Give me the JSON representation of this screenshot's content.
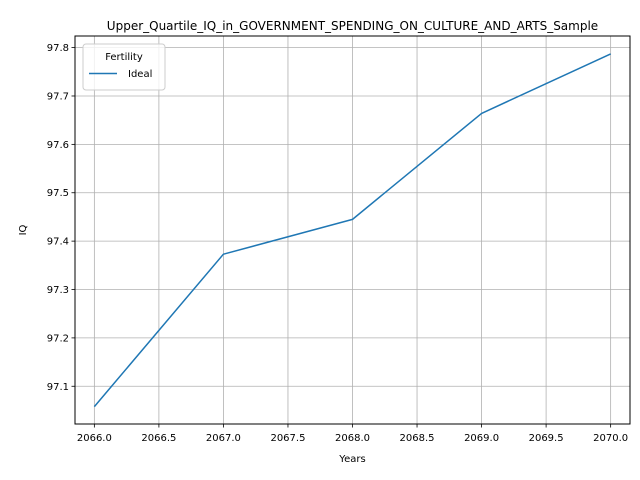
{
  "chart_data": {
    "type": "line",
    "title": "Upper_Quartile_IQ_in_GOVERNMENT_SPENDING_ON_CULTURE_AND_ARTS_Sample",
    "xlabel": "Years",
    "ylabel": "IQ",
    "xlim": [
      2065.85,
      2070.15
    ],
    "ylim": [
      97.022,
      97.824
    ],
    "x_ticks": [
      2066.0,
      2066.5,
      2067.0,
      2067.5,
      2068.0,
      2068.5,
      2069.0,
      2069.5,
      2070.0
    ],
    "x_tick_labels": [
      "2066.0",
      "2066.5",
      "2067.0",
      "2067.5",
      "2068.0",
      "2068.5",
      "2069.0",
      "2069.5",
      "2070.0"
    ],
    "y_ticks": [
      97.1,
      97.2,
      97.3,
      97.4,
      97.5,
      97.6,
      97.7,
      97.8
    ],
    "y_tick_labels": [
      "97.1",
      "97.2",
      "97.3",
      "97.4",
      "97.5",
      "97.6",
      "97.7",
      "97.8"
    ],
    "grid": true,
    "legend": {
      "title": "Fertility",
      "placement": "upper-left"
    },
    "series": [
      {
        "name": "Ideal",
        "color": "#1f77b4",
        "x": [
          2066,
          2067,
          2068,
          2069,
          2070
        ],
        "y": [
          97.058,
          97.373,
          97.445,
          97.664,
          97.787
        ]
      }
    ]
  }
}
